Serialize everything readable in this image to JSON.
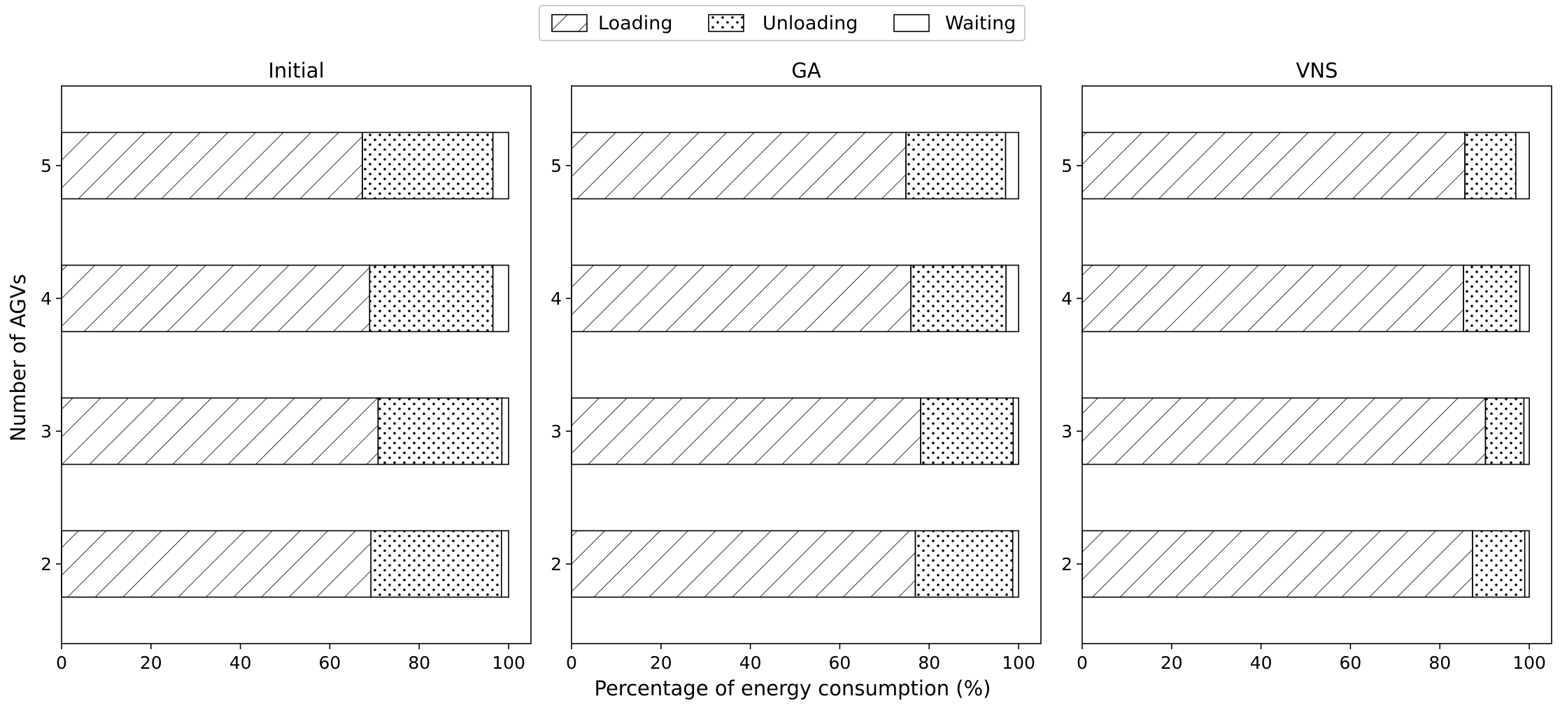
{
  "figure": {
    "legend": {
      "placement": "top-center",
      "items": [
        "Loading",
        "Unloading",
        "Waiting"
      ]
    },
    "xlabel": "Percentage of energy consumption (%)",
    "ylabel": "Number of AGVs"
  },
  "chart_data": [
    {
      "type": "bar",
      "orientation": "horizontal",
      "stacked": true,
      "title": "Initial",
      "categories": [
        "2",
        "3",
        "4",
        "5"
      ],
      "series": [
        {
          "name": "Loading",
          "values": [
            69.2,
            70.8,
            68.9,
            67.3
          ]
        },
        {
          "name": "Unloading",
          "values": [
            29.2,
            27.7,
            27.6,
            29.2
          ]
        },
        {
          "name": "Waiting",
          "values": [
            1.6,
            1.5,
            3.5,
            3.5
          ]
        }
      ],
      "xlim": [
        0,
        105
      ],
      "xticks": [
        0,
        20,
        40,
        60,
        80,
        100
      ],
      "grid": false
    },
    {
      "type": "bar",
      "orientation": "horizontal",
      "stacked": true,
      "title": "GA",
      "categories": [
        "2",
        "3",
        "4",
        "5"
      ],
      "series": [
        {
          "name": "Loading",
          "values": [
            76.9,
            78.1,
            75.9,
            74.8
          ]
        },
        {
          "name": "Unloading",
          "values": [
            21.8,
            20.7,
            21.3,
            22.3
          ]
        },
        {
          "name": "Waiting",
          "values": [
            1.3,
            1.2,
            2.8,
            2.9
          ]
        }
      ],
      "xlim": [
        0,
        105
      ],
      "xticks": [
        0,
        20,
        40,
        60,
        80,
        100
      ],
      "grid": false
    },
    {
      "type": "bar",
      "orientation": "horizontal",
      "stacked": true,
      "title": "VNS",
      "categories": [
        "2",
        "3",
        "4",
        "5"
      ],
      "series": [
        {
          "name": "Loading",
          "values": [
            87.3,
            90.2,
            85.3,
            85.6
          ]
        },
        {
          "name": "Unloading",
          "values": [
            11.7,
            8.6,
            12.6,
            11.4
          ]
        },
        {
          "name": "Waiting",
          "values": [
            1.0,
            1.2,
            2.1,
            3.0
          ]
        }
      ],
      "xlim": [
        0,
        105
      ],
      "xticks": [
        0,
        20,
        40,
        60,
        80,
        100
      ],
      "grid": false
    }
  ]
}
